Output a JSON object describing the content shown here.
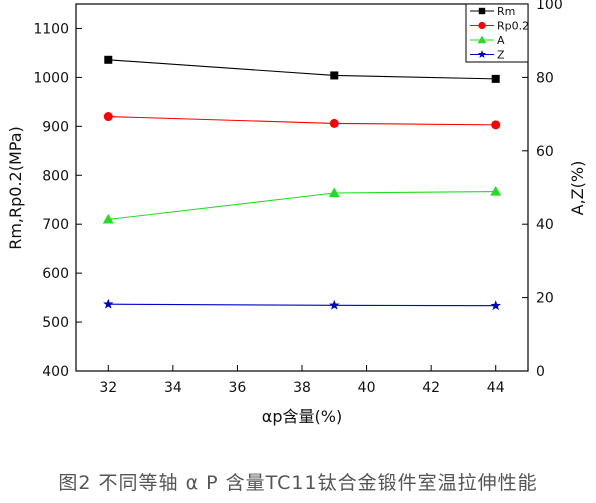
{
  "caption": "图2 不同等轴 α P 含量TC11钛合金锻件室温拉伸性能",
  "chart_data": {
    "type": "line",
    "xlabel": "αp含量(%)",
    "ylabel_left": "Rm,Rp0.2(MPa)",
    "ylabel_right": "A,Z(%)",
    "xlim": [
      31,
      45
    ],
    "ylim_left": [
      400,
      1150
    ],
    "ylim_right": [
      0,
      100
    ],
    "x_ticks": [
      32,
      34,
      36,
      38,
      40,
      42,
      44
    ],
    "y_left_ticks": [
      400,
      500,
      600,
      700,
      800,
      900,
      1000,
      1100
    ],
    "y_right_ticks": [
      0,
      20,
      40,
      60,
      80,
      100
    ],
    "grid": false,
    "legend_position": "top-right",
    "series": [
      {
        "name": "Rm",
        "axis": "left",
        "color": "#000000",
        "marker": "square",
        "x": [
          32,
          39,
          44
        ],
        "values": [
          1036,
          1004,
          997
        ]
      },
      {
        "name": "Rp0.2",
        "axis": "left",
        "color": "#ff0000",
        "marker": "circle",
        "x": [
          32,
          39,
          44
        ],
        "values": [
          920,
          906,
          903
        ]
      },
      {
        "name": "A",
        "axis": "right",
        "color": "#22dd22",
        "marker": "triangle",
        "x": [
          32,
          39,
          44
        ],
        "values": [
          41.3,
          48.5,
          48.9
        ]
      },
      {
        "name": "Z",
        "axis": "right",
        "color": "#0000cc",
        "marker": "star",
        "x": [
          32,
          39,
          44
        ],
        "values": [
          18.2,
          17.9,
          17.8
        ]
      }
    ]
  }
}
